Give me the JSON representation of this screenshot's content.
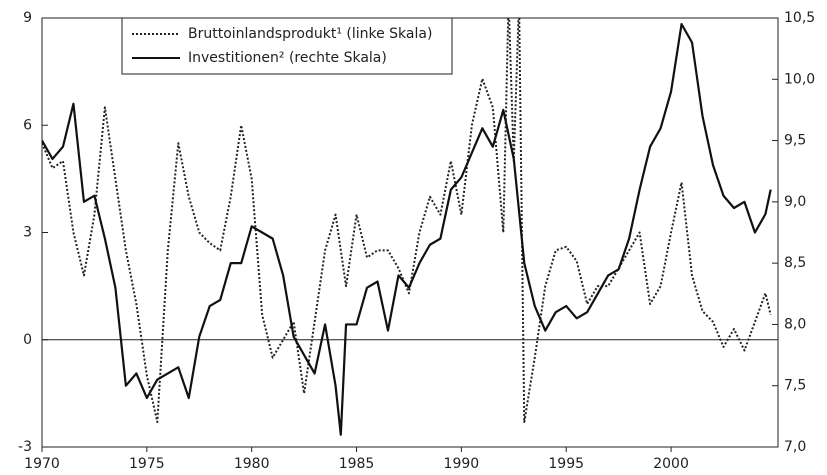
{
  "chart_data": {
    "type": "line",
    "xlim": [
      1970,
      2005.1
    ],
    "xticks": [
      1970,
      1975,
      1980,
      1985,
      1990,
      1995,
      2000
    ],
    "ylim": [
      -3,
      9
    ],
    "yticks": [
      -3,
      0,
      3,
      6,
      9
    ],
    "y2lim": [
      7.0,
      10.5
    ],
    "y2ticks": [
      {
        "value": 7.0,
        "label": "7,0"
      },
      {
        "value": 7.5,
        "label": "7,5"
      },
      {
        "value": 8.0,
        "label": "8,0"
      },
      {
        "value": 8.5,
        "label": "8,5"
      },
      {
        "value": 9.0,
        "label": "9,0"
      },
      {
        "value": 9.5,
        "label": "9,5"
      },
      {
        "value": 10.0,
        "label": "10,0"
      },
      {
        "value": 10.5,
        "label": "10,5"
      }
    ],
    "legend": "upper left",
    "series": [
      {
        "name": "Bruttoinlandsprodukt¹ (linke Skala)",
        "color": "#222222",
        "style": "dotted",
        "x": [
          1970,
          1970.5,
          1971,
          1971.5,
          1972,
          1972.5,
          1973,
          1973.5,
          1974,
          1974.5,
          1975,
          1975.5,
          1976,
          1976.5,
          1977,
          1977.5,
          1978,
          1978.5,
          1979,
          1979.5,
          1980,
          1980.5,
          1981,
          1981.5,
          1982,
          1982.5,
          1983,
          1983.5,
          1984,
          1984.5,
          1985,
          1985.5,
          1986,
          1986.5,
          1987,
          1987.5,
          1988,
          1988.5,
          1989,
          1989.5,
          1990,
          1990.5,
          1991,
          1991.5,
          1992,
          1992.25,
          1992.5,
          1992.75,
          1993,
          1993.5,
          1994,
          1994.5,
          1995,
          1995.5,
          1996,
          1996.5,
          1997,
          1997.5,
          1998,
          1998.5,
          1999,
          1999.5,
          2000,
          2000.5,
          2001,
          2001.5,
          2002,
          2002.5,
          2003,
          2003.5,
          2004,
          2004.5,
          2004.75
        ],
        "values": [
          5.5,
          4.8,
          5.0,
          3.0,
          1.8,
          3.5,
          6.5,
          4.5,
          2.5,
          1.0,
          -1.0,
          -2.3,
          2.5,
          5.5,
          4.0,
          3.0,
          2.7,
          2.5,
          4.0,
          6.0,
          4.5,
          0.7,
          -0.5,
          0.0,
          0.5,
          -1.5,
          0.5,
          2.5,
          3.5,
          1.5,
          3.5,
          2.3,
          2.5,
          2.5,
          2.0,
          1.3,
          3.0,
          4.0,
          3.5,
          5.0,
          3.5,
          6.0,
          7.3,
          6.5,
          3.0,
          9.5,
          5.0,
          9.5,
          -2.3,
          -0.5,
          1.5,
          2.5,
          2.6,
          2.2,
          1.0,
          1.5,
          1.5,
          2.0,
          2.5,
          3.0,
          1.0,
          1.5,
          3.0,
          4.4,
          1.8,
          0.8,
          0.5,
          -0.2,
          0.3,
          -0.3,
          0.5,
          1.3,
          0.7
        ]
      },
      {
        "name": "Investitionen² (rechte Skala)",
        "color": "#111111",
        "style": "solid",
        "axis": "y2",
        "x": [
          1970,
          1970.5,
          1971,
          1971.5,
          1972,
          1972.5,
          1973,
          1973.5,
          1974,
          1974.5,
          1975,
          1975.5,
          1976,
          1976.5,
          1977,
          1977.5,
          1978,
          1978.5,
          1979,
          1979.5,
          1980,
          1980.5,
          1981,
          1981.5,
          1982,
          1982.5,
          1983,
          1983.5,
          1984,
          1984.25,
          1984.5,
          1985,
          1985.5,
          1986,
          1986.5,
          1987,
          1987.5,
          1988,
          1988.5,
          1989,
          1989.5,
          1990,
          1990.5,
          1991,
          1991.5,
          1992,
          1992.5,
          1993,
          1993.5,
          1994,
          1994.5,
          1995,
          1995.5,
          1996,
          1996.5,
          1997,
          1997.5,
          1998,
          1998.5,
          1999,
          1999.5,
          2000,
          2000.5,
          2001,
          2001.5,
          2002,
          2002.5,
          2003,
          2003.5,
          2004,
          2004.5,
          2004.75
        ],
        "values": [
          9.5,
          9.35,
          9.45,
          9.8,
          9.0,
          9.05,
          8.7,
          8.3,
          7.5,
          7.6,
          7.4,
          7.55,
          7.6,
          7.65,
          7.4,
          7.9,
          8.15,
          8.2,
          8.5,
          8.5,
          8.8,
          8.75,
          8.7,
          8.4,
          7.9,
          7.75,
          7.6,
          8.0,
          7.5,
          7.1,
          8.0,
          8.0,
          8.3,
          8.35,
          7.95,
          8.4,
          8.3,
          8.5,
          8.65,
          8.7,
          9.1,
          9.2,
          9.4,
          9.6,
          9.45,
          9.75,
          9.35,
          8.5,
          8.15,
          7.95,
          8.1,
          8.15,
          8.05,
          8.1,
          8.25,
          8.4,
          8.45,
          8.7,
          9.1,
          9.45,
          9.6,
          9.9,
          10.45,
          10.3,
          9.7,
          9.3,
          9.05,
          8.95,
          9.0,
          8.75,
          8.9,
          9.1
        ]
      }
    ]
  }
}
